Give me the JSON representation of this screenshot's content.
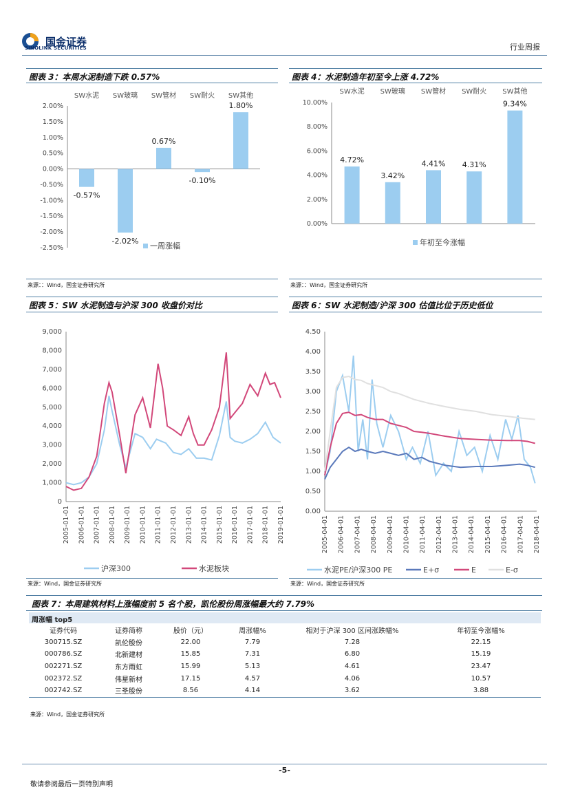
{
  "header": {
    "brand_cn": "国金证券",
    "brand_en": "SINOLINK SECURITIES",
    "section": "行业周报"
  },
  "fig3": {
    "title": "图表 3：本周水泥制造下跌 0.57%",
    "source": "来源：：Wind，国金证券研究所",
    "chart_data": {
      "type": "bar",
      "categories": [
        "SW水泥",
        "SW玻璃",
        "SW管材",
        "SW耐火",
        "SW其他"
      ],
      "values": [
        -0.57,
        -2.02,
        0.67,
        -0.1,
        1.8
      ],
      "value_labels": [
        "-0.57%",
        "-2.02%",
        "0.67%",
        "-0.10%",
        "1.80%"
      ],
      "ylim": [
        -2.5,
        2.0
      ],
      "yticks": [
        "2.00%",
        "1.50%",
        "1.00%",
        "0.50%",
        "0.00%",
        "-0.50%",
        "-1.00%",
        "-1.50%",
        "-2.00%",
        "-2.50%"
      ],
      "legend": "一周涨幅",
      "color": "#9ccdf0"
    }
  },
  "fig4": {
    "title": "图表 4：水泥制造年初至今上涨 4.72%",
    "source": "来源：：Wind，国金证券研究所",
    "chart_data": {
      "type": "bar",
      "categories": [
        "SW水泥",
        "SW玻璃",
        "SW管材",
        "SW耐火",
        "SW其他"
      ],
      "values": [
        4.72,
        3.42,
        4.41,
        4.31,
        9.34
      ],
      "value_labels": [
        "4.72%",
        "3.42%",
        "4.41%",
        "4.31%",
        "9.34%"
      ],
      "ylim": [
        0,
        10
      ],
      "yticks": [
        "10.00%",
        "8.00%",
        "6.00%",
        "4.00%",
        "2.00%",
        "0.00%"
      ],
      "legend": "年初至今涨幅",
      "color": "#9ccdf0"
    }
  },
  "fig5": {
    "title": "图表 5：SW 水泥制造与沪深 300 收盘价对比",
    "source": "来源：Wind，国金证券研究所",
    "chart_data": {
      "type": "line",
      "yticks": [
        "9,000",
        "8,000",
        "7,000",
        "6,000",
        "5,000",
        "4,000",
        "3,000",
        "2,000",
        "1,000",
        "0"
      ],
      "ylim": [
        0,
        9000
      ],
      "xticks": [
        "2005-01-01",
        "2006-01-01",
        "2007-01-01",
        "2008-01-01",
        "2009-01-01",
        "2010-01-01",
        "2011-01-01",
        "2012-01-01",
        "2013-01-01",
        "2014-01-01",
        "2015-01-01",
        "2016-01-01",
        "2017-01-01",
        "2018-01-01",
        "2019-01-01"
      ],
      "series": [
        {
          "name": "沪深300",
          "color": "#9ccdf0",
          "x": [
            2005.0,
            2005.5,
            2006.0,
            2006.5,
            2007.0,
            2007.5,
            2007.8,
            2008.0,
            2008.5,
            2008.9,
            2009.5,
            2010.0,
            2010.5,
            2010.9,
            2011.5,
            2012.0,
            2012.5,
            2013.0,
            2013.5,
            2014.0,
            2014.5,
            2015.0,
            2015.45,
            2015.7,
            2016.0,
            2016.5,
            2017.0,
            2017.5,
            2018.0,
            2018.5,
            2019.0
          ],
          "y": [
            1000,
            900,
            1000,
            1300,
            2000,
            3800,
            5600,
            4800,
            3000,
            1800,
            3600,
            3400,
            2800,
            3300,
            3100,
            2600,
            2500,
            2800,
            2300,
            2300,
            2200,
            3500,
            5300,
            3400,
            3200,
            3100,
            3300,
            3600,
            4200,
            3400,
            3100
          ]
        },
        {
          "name": "水泥板块",
          "color": "#d2487a",
          "x": [
            2005.0,
            2005.5,
            2006.0,
            2006.5,
            2007.0,
            2007.5,
            2007.8,
            2008.0,
            2008.5,
            2008.9,
            2009.5,
            2010.0,
            2010.5,
            2011.0,
            2011.3,
            2011.6,
            2012.0,
            2012.5,
            2013.0,
            2013.3,
            2013.6,
            2014.0,
            2014.5,
            2015.0,
            2015.45,
            2015.7,
            2016.0,
            2016.5,
            2017.0,
            2017.5,
            2018.0,
            2018.3,
            2018.6,
            2019.0
          ],
          "y": [
            800,
            600,
            700,
            1300,
            2400,
            5200,
            6300,
            5800,
            3500,
            1500,
            4600,
            5500,
            3900,
            7300,
            6000,
            4000,
            3800,
            3500,
            4500,
            3600,
            3000,
            3000,
            3800,
            5000,
            7900,
            4400,
            4700,
            5200,
            6200,
            5600,
            6800,
            6200,
            6300,
            5500
          ]
        }
      ]
    }
  },
  "fig6": {
    "title": "图表 6：SW 水泥制造/沪深 300 估值比位于历史低位",
    "source": "来源：Wind，国金证券研究所",
    "chart_data": {
      "type": "line",
      "yticks": [
        "4.50",
        "4.00",
        "3.50",
        "3.00",
        "2.50",
        "2.00",
        "1.50",
        "1.00",
        "0.50",
        "0.00"
      ],
      "ylim": [
        0,
        4.5
      ],
      "xticks": [
        "2005-04-01",
        "2006-04-01",
        "2007-04-01",
        "2008-04-01",
        "2009-04-01",
        "2010-04-01",
        "2011-04-01",
        "2012-04-01",
        "2013-04-01",
        "2014-04-01",
        "2015-04-01",
        "2016-04-01",
        "2017-04-01",
        "2018-04-01"
      ],
      "series": [
        {
          "name": "水泥PE/沪深300 PE",
          "color": "#9ccdf0",
          "x": [
            2005.25,
            2005.6,
            2006.0,
            2006.4,
            2006.8,
            2007.1,
            2007.4,
            2007.7,
            2008.0,
            2008.3,
            2008.6,
            2009.0,
            2009.5,
            2010.0,
            2010.5,
            2010.9,
            2011.4,
            2011.9,
            2012.4,
            2012.9,
            2013.4,
            2013.9,
            2014.4,
            2014.9,
            2015.4,
            2015.9,
            2016.4,
            2016.9,
            2017.3,
            2017.7,
            2018.1,
            2018.5,
            2018.8
          ],
          "y": [
            0.9,
            1.5,
            3.0,
            3.4,
            2.5,
            3.9,
            1.5,
            2.3,
            1.3,
            3.3,
            2.2,
            1.6,
            2.4,
            2.0,
            1.3,
            1.6,
            1.2,
            2.0,
            0.9,
            1.2,
            1.0,
            2.0,
            1.4,
            1.6,
            1.0,
            1.9,
            1.3,
            2.3,
            1.8,
            2.4,
            1.3,
            1.1,
            0.7
          ]
        },
        {
          "name": "E+σ",
          "color": "#5a79bb",
          "x": [
            2005.25,
            2005.6,
            2006.0,
            2006.4,
            2006.8,
            2007.2,
            2007.6,
            2008.0,
            2008.5,
            2009.0,
            2009.5,
            2010.0,
            2010.5,
            2011.0,
            2011.5,
            2012.0,
            2013.0,
            2014.0,
            2015.0,
            2016.0,
            2017.0,
            2017.8,
            2018.3,
            2018.8
          ],
          "y": [
            0.8,
            1.1,
            1.3,
            1.5,
            1.6,
            1.5,
            1.55,
            1.5,
            1.45,
            1.5,
            1.45,
            1.4,
            1.45,
            1.3,
            1.35,
            1.25,
            1.15,
            1.1,
            1.12,
            1.12,
            1.15,
            1.18,
            1.15,
            1.1
          ]
        },
        {
          "name": "E",
          "color": "#d2487a",
          "x": [
            2005.25,
            2005.6,
            2006.0,
            2006.4,
            2006.8,
            2007.2,
            2007.6,
            2008.0,
            2008.5,
            2009.0,
            2009.5,
            2010.0,
            2010.5,
            2011.0,
            2011.5,
            2012.0,
            2013.0,
            2014.0,
            2015.0,
            2016.0,
            2017.0,
            2017.8,
            2018.3,
            2018.8
          ],
          "y": [
            0.9,
            1.6,
            2.2,
            2.45,
            2.48,
            2.4,
            2.42,
            2.35,
            2.3,
            2.3,
            2.2,
            2.15,
            2.1,
            2.0,
            1.98,
            1.95,
            1.88,
            1.82,
            1.8,
            1.78,
            1.77,
            1.77,
            1.75,
            1.7
          ]
        },
        {
          "name": "E-σ",
          "color": "#e0e0e0",
          "x": [
            2005.25,
            2005.6,
            2006.0,
            2006.4,
            2006.8,
            2007.2,
            2007.6,
            2008.0,
            2008.5,
            2009.0,
            2009.5,
            2010.0,
            2011.0,
            2012.0,
            2013.0,
            2014.0,
            2015.0,
            2016.0,
            2017.0,
            2018.0,
            2018.8
          ],
          "y": [
            1.0,
            2.0,
            3.1,
            3.35,
            3.38,
            3.3,
            3.28,
            3.2,
            3.15,
            3.1,
            3.0,
            2.95,
            2.8,
            2.7,
            2.62,
            2.55,
            2.5,
            2.42,
            2.38,
            2.33,
            2.3
          ]
        }
      ]
    }
  },
  "fig7": {
    "title": "图表 7：本周建筑材料上涨幅度前 5 名个股，凯伦股份周涨幅最大约 7.79%",
    "band": "周涨幅 top5",
    "headers": [
      "证券代码",
      "证券简称",
      "股价（元）",
      "周涨幅%",
      "相对于沪深 300 区间涨跌幅%",
      "年初至今涨幅%"
    ],
    "rows": [
      [
        "300715.SZ",
        "凯伦股份",
        "22.00",
        "7.79",
        "7.28",
        "22.15"
      ],
      [
        "000786.SZ",
        "北新建材",
        "15.85",
        "7.31",
        "6.80",
        "15.19"
      ],
      [
        "002271.SZ",
        "东方雨虹",
        "15.99",
        "5.13",
        "4.61",
        "23.47"
      ],
      [
        "002372.SZ",
        "伟星新材",
        "17.15",
        "4.57",
        "4.06",
        "10.57"
      ],
      [
        "002742.SZ",
        "三圣股份",
        "8.56",
        "4.14",
        "3.62",
        "3.88"
      ]
    ],
    "source": "来源：Wind，国金证券研究所"
  },
  "footer": {
    "page": "-5-",
    "note": "敬请参阅最后一页特别声明"
  }
}
